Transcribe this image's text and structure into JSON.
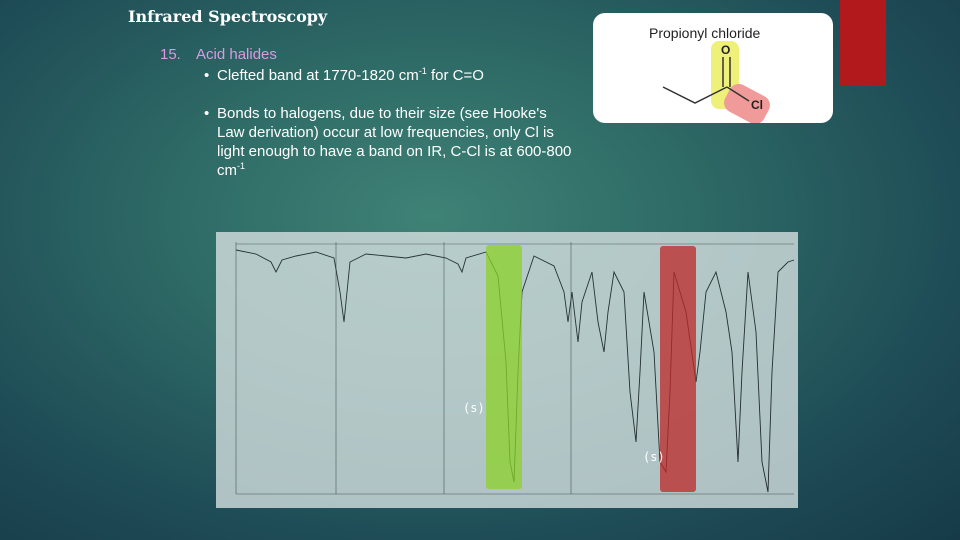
{
  "slide": {
    "title": "Infrared Spectroscopy",
    "section_number": "15.",
    "section_title": "Acid halides",
    "bullets": [
      {
        "text_before": "Clefted band at 1770-1820 cm",
        "sup": "-1",
        "text_after": " for C=O"
      },
      {
        "text_before": "Bonds to halogens, due to their size (see Hooke's Law derivation) occur at low frequencies, only Cl is light enough to have a band on IR, C-Cl is at 600-800 cm",
        "sup": "-1",
        "text_after": ""
      }
    ],
    "bullet_glyph": "•"
  },
  "molecule": {
    "name": "Propionyl chloride",
    "oxygen_label": "O",
    "chlorine_label": "Cl",
    "highlight_colors": {
      "carbonyl": "#eef07a",
      "chlorine": "#f19a9a"
    }
  },
  "spectrum": {
    "strong_label_1": "(s)",
    "strong_label_2": "(s)",
    "band_colors": {
      "c_o_stretch": "#8cd228",
      "c_cl_stretch": "#be2828"
    }
  },
  "colors": {
    "accent_red": "#b2191c",
    "heading_purple": "#d89be0"
  }
}
